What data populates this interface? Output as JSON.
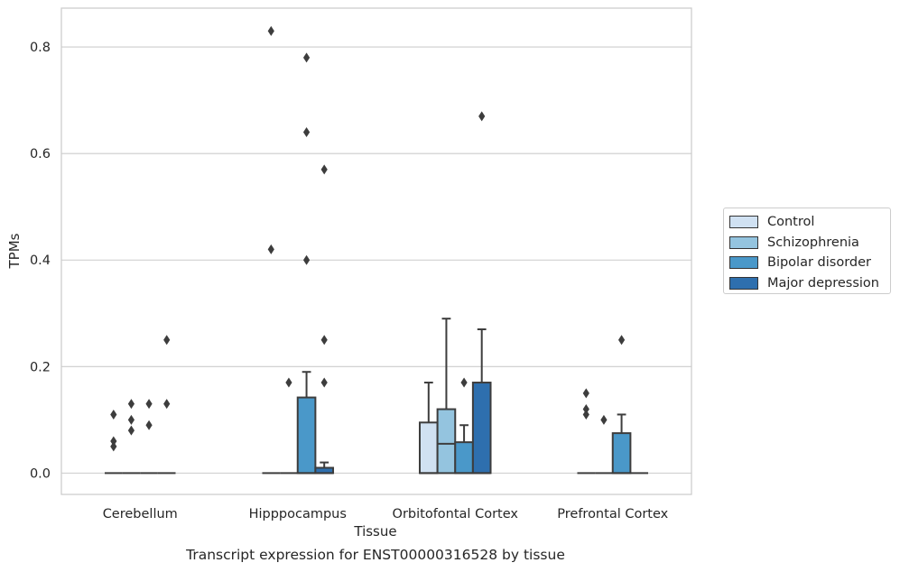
{
  "chart_data": {
    "type": "box",
    "xlabel": "Tissue",
    "ylabel": "TPMs",
    "caption": "Transcript expression for ENST00000316528 by tissue",
    "ylim": [
      -0.04,
      0.873
    ],
    "yticks": [
      "0.0",
      "0.2",
      "0.4",
      "0.6",
      "0.8"
    ],
    "grid": "horizontal",
    "legend_position": "right",
    "categories": [
      "Cerebellum",
      "Hipppocampus",
      "Orbitofontal Cortex",
      "Prefrontal Cortex"
    ],
    "series": [
      {
        "name": "Control",
        "color": "#d0e1f2",
        "boxes": [
          {
            "category": "Cerebellum",
            "q1": 0,
            "median": 0,
            "q3": 0,
            "whisker_low": 0,
            "whisker_high": 0,
            "outliers": [
              0.05,
              0.06,
              0.11
            ]
          },
          {
            "category": "Hipppocampus",
            "q1": 0,
            "median": 0,
            "q3": 0,
            "whisker_low": 0,
            "whisker_high": 0,
            "outliers": [
              0.42,
              0.83
            ]
          },
          {
            "category": "Orbitofontal Cortex",
            "q1": 0,
            "median": 0,
            "q3": 0.095,
            "whisker_low": 0,
            "whisker_high": 0.17,
            "outliers": []
          },
          {
            "category": "Prefrontal Cortex",
            "q1": 0,
            "median": 0,
            "q3": 0,
            "whisker_low": 0,
            "whisker_high": 0,
            "outliers": [
              0.11,
              0.12,
              0.15
            ]
          }
        ]
      },
      {
        "name": "Schizophrenia",
        "color": "#94c4df",
        "boxes": [
          {
            "category": "Cerebellum",
            "q1": 0,
            "median": 0,
            "q3": 0,
            "whisker_low": 0,
            "whisker_high": 0,
            "outliers": [
              0.08,
              0.1,
              0.13
            ]
          },
          {
            "category": "Hipppocampus",
            "q1": 0,
            "median": 0,
            "q3": 0,
            "whisker_low": 0,
            "whisker_high": 0,
            "outliers": [
              0.17
            ]
          },
          {
            "category": "Orbitofontal Cortex",
            "q1": 0,
            "median": 0.055,
            "q3": 0.12,
            "whisker_low": 0,
            "whisker_high": 0.29,
            "outliers": []
          },
          {
            "category": "Prefrontal Cortex",
            "q1": 0,
            "median": 0,
            "q3": 0,
            "whisker_low": 0,
            "whisker_high": 0,
            "outliers": [
              0.1
            ]
          }
        ]
      },
      {
        "name": "Bipolar disorder",
        "color": "#4a98c9",
        "boxes": [
          {
            "category": "Cerebellum",
            "q1": 0,
            "median": 0,
            "q3": 0,
            "whisker_low": 0,
            "whisker_high": 0,
            "outliers": [
              0.09,
              0.13
            ]
          },
          {
            "category": "Hipppocampus",
            "q1": 0,
            "median": 0,
            "q3": 0.142,
            "whisker_low": 0,
            "whisker_high": 0.19,
            "outliers": [
              0.4,
              0.64,
              0.78
            ]
          },
          {
            "category": "Orbitofontal Cortex",
            "q1": 0,
            "median": 0,
            "q3": 0.058,
            "whisker_low": 0,
            "whisker_high": 0.09,
            "outliers": [
              0.17
            ]
          },
          {
            "category": "Prefrontal Cortex",
            "q1": 0,
            "median": 0,
            "q3": 0.075,
            "whisker_low": 0,
            "whisker_high": 0.11,
            "outliers": [
              0.25
            ]
          }
        ]
      },
      {
        "name": "Major depression",
        "color": "#2e6fae",
        "boxes": [
          {
            "category": "Cerebellum",
            "q1": 0,
            "median": 0,
            "q3": 0,
            "whisker_low": 0,
            "whisker_high": 0,
            "outliers": [
              0.13,
              0.25
            ]
          },
          {
            "category": "Hipppocampus",
            "q1": 0,
            "median": 0,
            "q3": 0.01,
            "whisker_low": 0,
            "whisker_high": 0.02,
            "outliers": [
              0.17,
              0.25,
              0.57
            ]
          },
          {
            "category": "Orbitofontal Cortex",
            "q1": 0,
            "median": 0,
            "q3": 0.17,
            "whisker_low": 0,
            "whisker_high": 0.27,
            "outliers": [
              0.67
            ]
          },
          {
            "category": "Prefrontal Cortex",
            "q1": 0,
            "median": 0,
            "q3": 0,
            "whisker_low": 0,
            "whisker_high": 0,
            "outliers": []
          }
        ]
      }
    ]
  }
}
